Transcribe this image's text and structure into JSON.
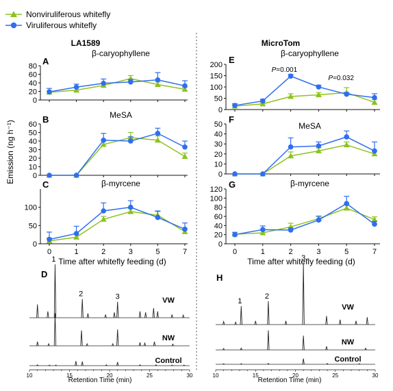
{
  "legend": {
    "position": "top-left",
    "entries": [
      {
        "name": "Nonviruliferous whitefly",
        "color": "#8dc21f",
        "marker": "triangle"
      },
      {
        "name": "Viruliferous whitefly",
        "color": "#2f6ef0",
        "marker": "circle"
      }
    ]
  },
  "colors": {
    "nonviruliferous": "#8dc21f",
    "viruliferous": "#2f6ef0",
    "trace": "#222222",
    "divider": "#555555"
  },
  "left_heading": "LA1589",
  "right_heading": "MicroTom",
  "y_axis_label": "Emission (ng h⁻¹)",
  "x_axis_label": "Time after whitefly feeding (d)",
  "chromatogram_x_label": "Retention Time (min)",
  "chart_data": [
    {
      "panel": "A",
      "type": "line",
      "compound": "β-caryophyllene",
      "x": [
        0,
        1,
        2,
        3,
        5,
        7
      ],
      "ylim": [
        0,
        80
      ],
      "yticks": [
        0,
        20,
        40,
        60,
        80
      ],
      "series": [
        {
          "name": "Nonviruliferous whitefly",
          "values": [
            18,
            23,
            34,
            50,
            36,
            25
          ],
          "errors": [
            3,
            5,
            5,
            7,
            6,
            5
          ]
        },
        {
          "name": "Viruliferous whitefly",
          "values": [
            19,
            30,
            39,
            42,
            47,
            33
          ],
          "errors": [
            8,
            7,
            10,
            6,
            17,
            12
          ]
        }
      ]
    },
    {
      "panel": "B",
      "type": "line",
      "compound": "MeSA",
      "x": [
        0,
        1,
        2,
        3,
        5,
        7
      ],
      "ylim": [
        0,
        60
      ],
      "yticks": [
        0,
        10,
        20,
        30,
        40,
        50,
        60
      ],
      "series": [
        {
          "name": "Nonviruliferous whitefly",
          "values": [
            0,
            0,
            36,
            44,
            41,
            22
          ],
          "errors": [
            0,
            0,
            4,
            6,
            5,
            4
          ]
        },
        {
          "name": "Viruliferous whitefly",
          "values": [
            0,
            0,
            41,
            40,
            49,
            33
          ],
          "errors": [
            0,
            0,
            8,
            5,
            6,
            7
          ]
        }
      ]
    },
    {
      "panel": "C",
      "type": "line",
      "compound": "β-myrcene",
      "x": [
        0,
        1,
        2,
        3,
        5,
        7
      ],
      "ylim": [
        0,
        150
      ],
      "yticks": [
        0,
        50,
        100
      ],
      "series": [
        {
          "name": "Nonviruliferous whitefly",
          "values": [
            8,
            18,
            67,
            88,
            78,
            33
          ],
          "errors": [
            8,
            10,
            8,
            8,
            10,
            8
          ]
        },
        {
          "name": "Viruliferous whitefly",
          "values": [
            12,
            28,
            90,
            100,
            72,
            40
          ],
          "errors": [
            20,
            20,
            22,
            18,
            18,
            17
          ]
        }
      ]
    },
    {
      "panel": "E",
      "type": "line",
      "compound": "β-caryophyllene",
      "x": [
        0,
        1,
        2,
        3,
        5,
        7
      ],
      "ylim": [
        0,
        200
      ],
      "yticks": [
        0,
        50,
        100,
        150,
        200
      ],
      "annotations": [
        "P=0.001",
        "P=0.032"
      ],
      "series": [
        {
          "name": "Nonviruliferous whitefly",
          "values": [
            15,
            25,
            58,
            65,
            75,
            32
          ],
          "errors": [
            5,
            5,
            12,
            10,
            22,
            12
          ]
        },
        {
          "name": "Viruliferous whitefly",
          "values": [
            18,
            38,
            148,
            100,
            68,
            53
          ],
          "errors": [
            8,
            8,
            8,
            8,
            8,
            17
          ]
        }
      ]
    },
    {
      "panel": "F",
      "type": "line",
      "compound": "MeSA",
      "x": [
        0,
        1,
        2,
        3,
        5,
        7
      ],
      "ylim": [
        0,
        50
      ],
      "yticks": [
        0,
        10,
        20,
        30,
        40,
        50
      ],
      "series": [
        {
          "name": "Nonviruliferous whitefly",
          "values": [
            0,
            0,
            18,
            23,
            29,
            20
          ],
          "errors": [
            0,
            0,
            4,
            3,
            3,
            3
          ]
        },
        {
          "name": "Viruliferous whitefly",
          "values": [
            0,
            0,
            27,
            28,
            37,
            23
          ],
          "errors": [
            0,
            0,
            9,
            4,
            6,
            9
          ]
        }
      ]
    },
    {
      "panel": "G",
      "type": "line",
      "compound": "β-myrcene",
      "x": [
        0,
        1,
        2,
        3,
        5,
        7
      ],
      "ylim": [
        0,
        120
      ],
      "yticks": [
        0,
        20,
        40,
        60,
        80,
        100,
        120
      ],
      "series": [
        {
          "name": "Nonviruliferous whitefly",
          "values": [
            21,
            24,
            37,
            55,
            78,
            53
          ],
          "errors": [
            4,
            6,
            8,
            6,
            8,
            6
          ]
        },
        {
          "name": "Viruliferous whitefly",
          "values": [
            20,
            31,
            30,
            52,
            88,
            43
          ],
          "errors": [
            5,
            8,
            5,
            8,
            16,
            6
          ]
        }
      ]
    }
  ],
  "chromatograms": [
    {
      "panel": "D",
      "xticks": [
        10,
        15,
        20,
        25,
        30
      ],
      "xlim": [
        10,
        30
      ],
      "traces": [
        {
          "label": "VW",
          "peaks": [
            [
              11,
              0.25
            ],
            [
              12.3,
              0.12
            ],
            [
              13.2,
              1.0
            ],
            [
              16.6,
              0.35
            ],
            [
              17.3,
              0.08
            ],
            [
              19.5,
              0.06
            ],
            [
              20.6,
              0.1
            ],
            [
              21.0,
              0.3
            ],
            [
              23.8,
              0.12
            ],
            [
              24.5,
              0.1
            ],
            [
              25.5,
              0.18
            ],
            [
              26.0,
              0.12
            ],
            [
              27.8,
              0.06
            ],
            [
              29.2,
              0.05
            ]
          ],
          "peak_labels": [
            {
              "text": "1",
              "rt": 13.2
            },
            {
              "text": "2",
              "rt": 16.6
            },
            {
              "text": "3",
              "rt": 21.0
            }
          ]
        },
        {
          "label": "NW",
          "peaks": [
            [
              11,
              0.12
            ],
            [
              12.4,
              0.06
            ],
            [
              13.2,
              0.95
            ],
            [
              16.5,
              0.45
            ],
            [
              17.2,
              0.06
            ],
            [
              20.4,
              0.06
            ],
            [
              21.0,
              0.48
            ],
            [
              23.8,
              0.1
            ],
            [
              24.4,
              0.08
            ],
            [
              25.6,
              0.12
            ],
            [
              27.9,
              0.05
            ]
          ]
        },
        {
          "label": "Control",
          "peaks": [
            [
              11,
              0.05
            ],
            [
              12.5,
              0.04
            ],
            [
              13.3,
              0.04
            ],
            [
              15.8,
              0.28
            ],
            [
              16.6,
              0.25
            ],
            [
              19.6,
              0.05
            ],
            [
              21.0,
              0.22
            ],
            [
              23.8,
              0.05
            ],
            [
              25.8,
              0.06
            ],
            [
              27.8,
              0.04
            ],
            [
              29.3,
              0.04
            ]
          ]
        }
      ]
    },
    {
      "panel": "H",
      "xticks": [
        10,
        15,
        20,
        25,
        30
      ],
      "xlim": [
        10,
        30
      ],
      "traces": [
        {
          "label": "VW",
          "peaks": [
            [
              11,
              0.05
            ],
            [
              12.5,
              0.04
            ],
            [
              13.2,
              0.3
            ],
            [
              15.0,
              0.06
            ],
            [
              16.6,
              0.38
            ],
            [
              18.8,
              0.06
            ],
            [
              21.0,
              1.0
            ],
            [
              23.9,
              0.14
            ],
            [
              25.6,
              0.08
            ],
            [
              27.6,
              0.06
            ],
            [
              29.0,
              0.12
            ]
          ],
          "peak_labels": [
            {
              "text": "1",
              "rt": 13.2
            },
            {
              "text": "2",
              "rt": 16.6
            },
            {
              "text": "3",
              "rt": 21.0
            }
          ]
        },
        {
          "label": "NW",
          "peaks": [
            [
              11,
              0.04
            ],
            [
              13.2,
              0.05
            ],
            [
              16.6,
              0.55
            ],
            [
              21.0,
              0.4
            ],
            [
              23.9,
              0.1
            ],
            [
              28.8,
              0.05
            ]
          ]
        },
        {
          "label": "Control",
          "peaks": [
            [
              11,
              0.04
            ],
            [
              13.2,
              0.04
            ],
            [
              16.6,
              0.05
            ],
            [
              21.0,
              0.35
            ],
            [
              24.0,
              0.05
            ],
            [
              28.0,
              0.04
            ]
          ]
        }
      ]
    }
  ]
}
